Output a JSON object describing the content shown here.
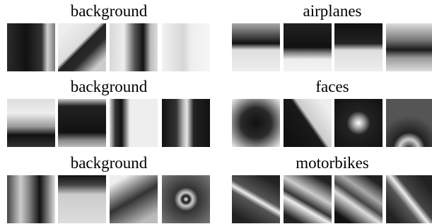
{
  "panels": [
    {
      "label": "background"
    },
    {
      "label": "airplanes"
    },
    {
      "label": "background"
    },
    {
      "label": "faces"
    },
    {
      "label": "background"
    },
    {
      "label": "motorbikes"
    }
  ]
}
